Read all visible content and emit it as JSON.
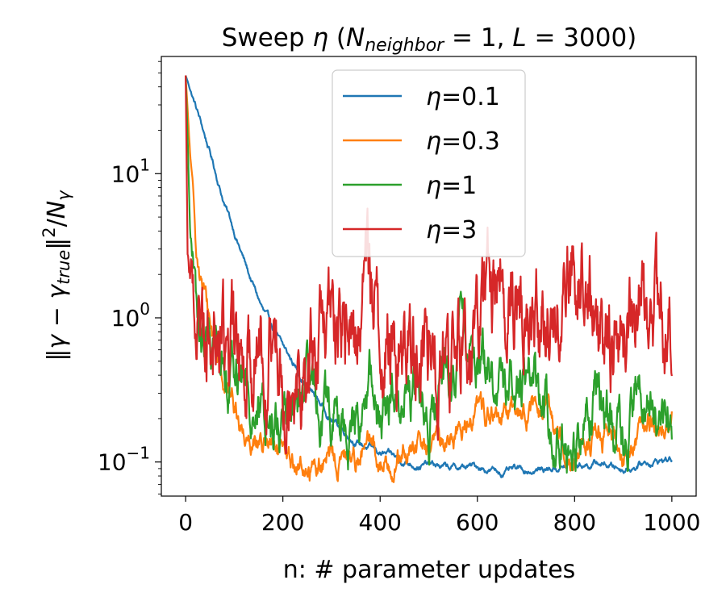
{
  "chart_data": {
    "type": "line",
    "title": "Sweep η (N_neighbor = 1, L = 3000)",
    "title_parts": {
      "prefix": "Sweep ",
      "eta": "η",
      "open": " (",
      "n_main": "N",
      "n_sub": "neighbor",
      "eq1": " = 1, ",
      "l_main": "L",
      "eq2": " = 3000)"
    },
    "xlabel": "n: # parameter updates",
    "ylabel": "‖γ − γtrue‖²/Nγ",
    "ylabel_parts": {
      "open": "‖",
      "g1": "γ",
      "minus": " − ",
      "g2": "γ",
      "sub_true": "true",
      "close": "‖",
      "sup2": "2",
      "slash": "/",
      "n": "N",
      "sub_gamma": "γ"
    },
    "xlim": [
      -50,
      1050
    ],
    "ylim": [
      0.058,
      65
    ],
    "yscale": "log",
    "x_ticks": [
      0,
      200,
      400,
      600,
      800,
      1000
    ],
    "x_tick_labels": [
      "0",
      "200",
      "400",
      "600",
      "800",
      "1000"
    ],
    "y_ticks": [
      0.1,
      1,
      10
    ],
    "y_tick_labels": [
      {
        "base": "10",
        "exp": "−1"
      },
      {
        "base": "10",
        "exp": "0"
      },
      {
        "base": "10",
        "exp": "1"
      }
    ],
    "legend_position": "upper center",
    "series": [
      {
        "name": "η=0.1",
        "label_eta": "η",
        "label_value": "=0.1",
        "color": "#1f77b4",
        "anchors": [
          [
            0,
            48
          ],
          [
            20,
            30
          ],
          [
            50,
            14
          ],
          [
            80,
            6.2
          ],
          [
            100,
            4.0
          ],
          [
            130,
            2.0
          ],
          [
            160,
            1.1
          ],
          [
            200,
            0.62
          ],
          [
            250,
            0.34
          ],
          [
            300,
            0.2
          ],
          [
            350,
            0.14
          ],
          [
            400,
            0.115
          ],
          [
            450,
            0.1
          ],
          [
            500,
            0.095
          ],
          [
            550,
            0.09
          ],
          [
            600,
            0.093
          ],
          [
            650,
            0.085
          ],
          [
            700,
            0.087
          ],
          [
            750,
            0.09
          ],
          [
            800,
            0.095
          ],
          [
            850,
            0.098
          ],
          [
            900,
            0.09
          ],
          [
            950,
            0.1
          ],
          [
            1000,
            0.105
          ]
        ],
        "noise_amp": 0.015,
        "noise_corr": 0.92
      },
      {
        "name": "η=0.3",
        "label_eta": "η",
        "label_value": "=0.3",
        "color": "#ff7f0e",
        "anchors": [
          [
            0,
            48
          ],
          [
            10,
            12
          ],
          [
            20,
            3.5
          ],
          [
            35,
            1.6
          ],
          [
            50,
            0.9
          ],
          [
            70,
            0.5
          ],
          [
            100,
            0.25
          ],
          [
            120,
            0.16
          ],
          [
            150,
            0.15
          ],
          [
            200,
            0.1
          ],
          [
            250,
            0.09
          ],
          [
            300,
            0.1
          ],
          [
            350,
            0.11
          ],
          [
            380,
            0.13
          ],
          [
            400,
            0.1
          ],
          [
            450,
            0.11
          ],
          [
            500,
            0.13
          ],
          [
            550,
            0.15
          ],
          [
            580,
            0.2
          ],
          [
            600,
            0.26
          ],
          [
            650,
            0.18
          ],
          [
            700,
            0.24
          ],
          [
            750,
            0.18
          ],
          [
            800,
            0.12
          ],
          [
            850,
            0.15
          ],
          [
            900,
            0.12
          ],
          [
            950,
            0.18
          ],
          [
            1000,
            0.2
          ]
        ],
        "noise_amp": 0.05,
        "noise_corr": 0.88
      },
      {
        "name": "η=1",
        "label_eta": "η",
        "label_value": "=1",
        "color": "#2ca02c",
        "anchors": [
          [
            0,
            48
          ],
          [
            5,
            14
          ],
          [
            10,
            4.0
          ],
          [
            20,
            1.2
          ],
          [
            30,
            0.65
          ],
          [
            50,
            0.55
          ],
          [
            80,
            0.6
          ],
          [
            100,
            0.4
          ],
          [
            130,
            0.35
          ],
          [
            150,
            0.2
          ],
          [
            180,
            0.18
          ],
          [
            200,
            0.22
          ],
          [
            250,
            0.28
          ],
          [
            300,
            0.2
          ],
          [
            350,
            0.16
          ],
          [
            380,
            0.35
          ],
          [
            400,
            0.2
          ],
          [
            430,
            0.3
          ],
          [
            450,
            0.35
          ],
          [
            500,
            0.2
          ],
          [
            550,
            0.4
          ],
          [
            570,
            0.8
          ],
          [
            600,
            0.6
          ],
          [
            650,
            0.3
          ],
          [
            700,
            0.5
          ],
          [
            750,
            0.2
          ],
          [
            800,
            0.12
          ],
          [
            850,
            0.32
          ],
          [
            900,
            0.15
          ],
          [
            950,
            0.3
          ],
          [
            1000,
            0.15
          ]
        ],
        "noise_amp": 0.1,
        "noise_corr": 0.85
      },
      {
        "name": "η=3",
        "label_eta": "η",
        "label_value": "=3",
        "color": "#d62728",
        "anchors": [
          [
            0,
            48
          ],
          [
            4,
            3.0
          ],
          [
            10,
            2.0
          ],
          [
            30,
            1.1
          ],
          [
            60,
            0.9
          ],
          [
            100,
            0.55
          ],
          [
            150,
            0.75
          ],
          [
            200,
            0.6
          ],
          [
            250,
            0.45
          ],
          [
            300,
            0.9
          ],
          [
            350,
            0.7
          ],
          [
            375,
            2.6
          ],
          [
            400,
            0.75
          ],
          [
            450,
            0.55
          ],
          [
            500,
            0.6
          ],
          [
            550,
            0.5
          ],
          [
            600,
            0.9
          ],
          [
            650,
            2.0
          ],
          [
            700,
            1.2
          ],
          [
            750,
            1.0
          ],
          [
            800,
            2.3
          ],
          [
            850,
            0.9
          ],
          [
            900,
            0.85
          ],
          [
            950,
            1.2
          ],
          [
            1000,
            0.6
          ]
        ],
        "noise_amp": 0.17,
        "noise_corr": 0.8
      }
    ]
  }
}
